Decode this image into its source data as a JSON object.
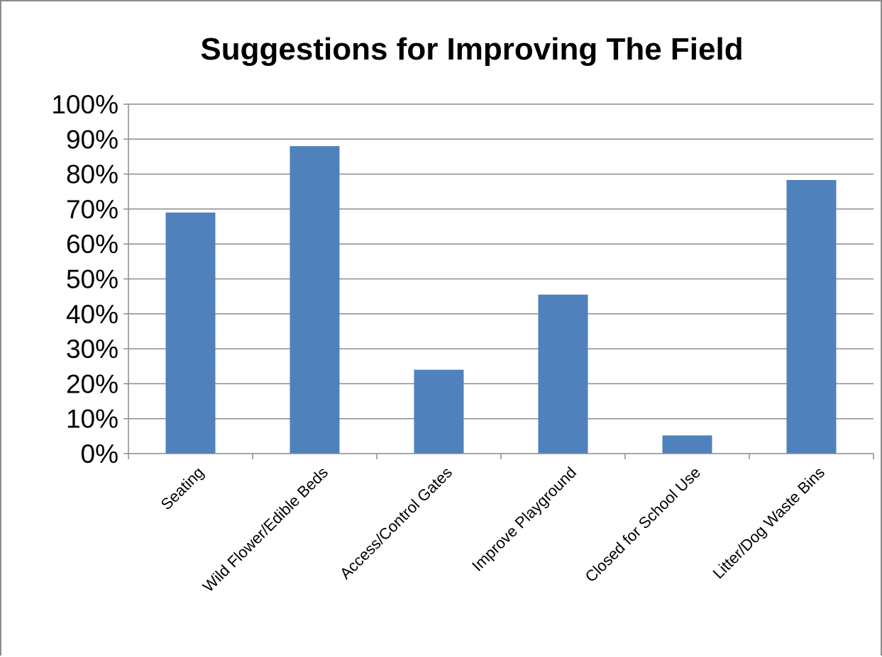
{
  "chart_data": {
    "type": "bar",
    "title": "Suggestions for Improving The Field",
    "xlabel": "",
    "ylabel": "",
    "categories": [
      "Seating",
      "Wild Flower/Edible Beds",
      "Access/Control Gates",
      "Improve Playground",
      "Closed for School Use",
      "Litter/Dog Waste Bins"
    ],
    "values": [
      69,
      88,
      24,
      45.5,
      5.2,
      78.3
    ],
    "ylim": [
      0,
      100
    ],
    "yticks": [
      0,
      10,
      20,
      30,
      40,
      50,
      60,
      70,
      80,
      90,
      100
    ],
    "ytick_format": "{v}%",
    "grid": true,
    "legend": "none",
    "bar_color": "#4f81bd",
    "grid_color": "#8c8c8c"
  }
}
